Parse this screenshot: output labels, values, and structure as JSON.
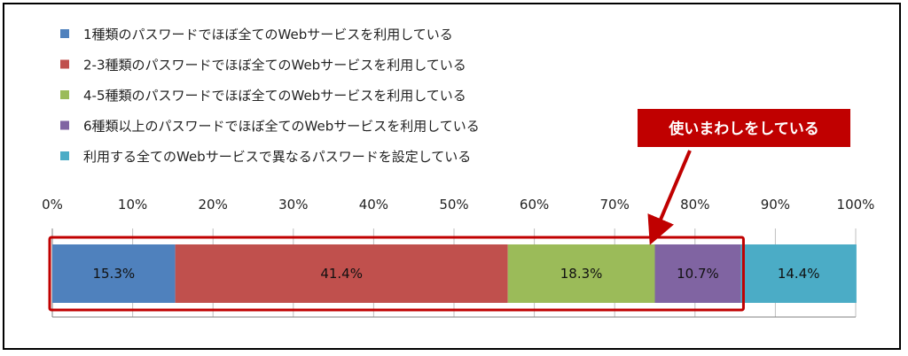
{
  "chart_data": {
    "type": "bar",
    "orientation": "horizontal-stacked",
    "xlim": [
      0,
      100
    ],
    "x_ticks": [
      "0%",
      "10%",
      "20%",
      "30%",
      "40%",
      "50%",
      "60%",
      "70%",
      "80%",
      "90%",
      "100%"
    ],
    "grid": true,
    "legend_placement": "top-left",
    "series": [
      {
        "name": "1種類のパスワードでほぼ全てのWebサービスを利用している",
        "value": 15.3,
        "label": "15.3%",
        "color": "#4F81BD"
      },
      {
        "name": "2-3種類のパスワードでほぼ全てのWebサービスを利用している",
        "value": 41.4,
        "label": "41.4%",
        "color": "#C0504D"
      },
      {
        "name": "4-5種類のパスワードでほぼ全てのWebサービスを利用している",
        "value": 18.3,
        "label": "18.3%",
        "color": "#9BBB59"
      },
      {
        "name": "6種類以上のパスワードでほぼ全てのWebサービスを利用している",
        "value": 10.7,
        "label": "10.7%",
        "color": "#8064A2"
      },
      {
        "name": "利用する全てのWebサービスで異なるパスワードを設定している",
        "value": 14.4,
        "label": "14.4%",
        "color": "#4BACC6"
      }
    ],
    "annotation": {
      "text": "使いまわしをしている",
      "color": "#C00000",
      "highlight_from": 0,
      "highlight_to": 85.7
    }
  }
}
